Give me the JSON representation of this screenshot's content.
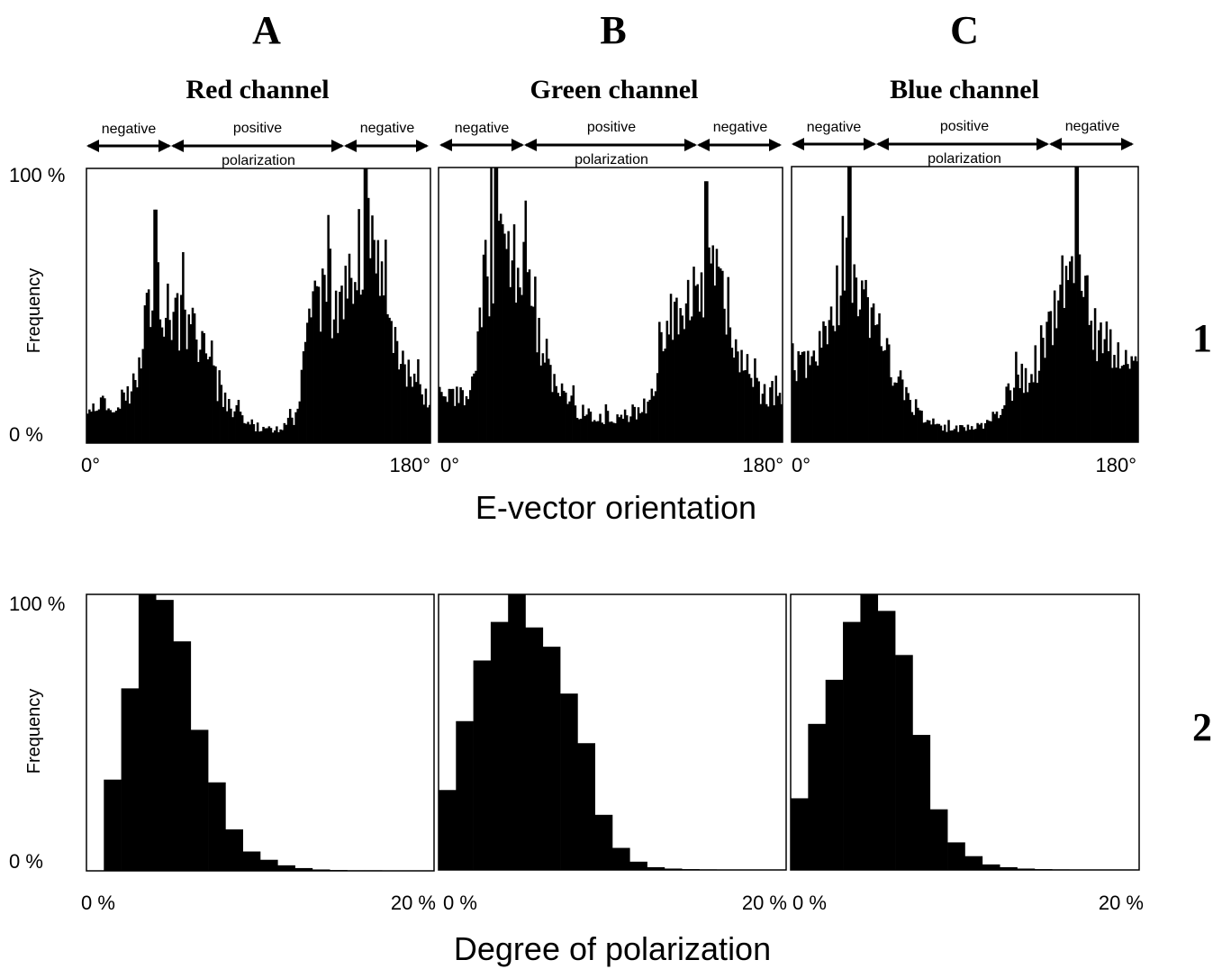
{
  "columns": [
    {
      "letter": "A",
      "channel": "Red channel"
    },
    {
      "letter": "B",
      "channel": "Green channel"
    },
    {
      "letter": "C",
      "channel": "Blue channel"
    }
  ],
  "rows": [
    "1",
    "2"
  ],
  "polarization_labels": {
    "negative": "negative",
    "positive": "positive",
    "polarization": "polarization"
  },
  "y_axis": {
    "label": "Frequency",
    "top": "100 %",
    "bottom": "0 %"
  },
  "row1_axis": {
    "min_label": "0°",
    "max_label": "180°",
    "title": "E-vector orientation"
  },
  "row2_axis": {
    "min_label": "0 %",
    "max_label": "20 %",
    "title": "Degree of polarization"
  },
  "chart_data": [
    {
      "type": "bar",
      "panel": "A1",
      "title": "Red channel",
      "xlabel": "E-vector orientation",
      "ylabel": "Frequency",
      "xlim": [
        0,
        180
      ],
      "ylim": [
        0,
        100
      ],
      "bin_width_deg": 1,
      "envelope": [
        [
          0,
          14
        ],
        [
          20,
          16
        ],
        [
          28,
          25
        ],
        [
          30,
          52
        ],
        [
          36,
          60
        ],
        [
          40,
          48
        ],
        [
          50,
          44
        ],
        [
          60,
          36
        ],
        [
          70,
          18
        ],
        [
          80,
          10
        ],
        [
          90,
          5
        ],
        [
          100,
          5
        ],
        [
          110,
          9
        ],
        [
          112,
          14
        ],
        [
          114,
          42
        ],
        [
          120,
          50
        ],
        [
          130,
          52
        ],
        [
          140,
          60
        ],
        [
          146,
          74
        ],
        [
          150,
          64
        ],
        [
          156,
          54
        ],
        [
          160,
          44
        ],
        [
          166,
          30
        ],
        [
          172,
          20
        ],
        [
          180,
          14
        ]
      ],
      "peaks": [
        [
          36,
          85
        ],
        [
          146,
          100
        ]
      ]
    },
    {
      "type": "bar",
      "panel": "B1",
      "title": "Green channel",
      "xlabel": "E-vector orientation",
      "ylabel": "Frequency",
      "xlim": [
        0,
        180
      ],
      "ylim": [
        0,
        100
      ],
      "bin_width_deg": 1,
      "envelope": [
        [
          0,
          16
        ],
        [
          10,
          16
        ],
        [
          18,
          20
        ],
        [
          22,
          50
        ],
        [
          28,
          64
        ],
        [
          34,
          68
        ],
        [
          40,
          62
        ],
        [
          48,
          58
        ],
        [
          54,
          36
        ],
        [
          60,
          22
        ],
        [
          70,
          13
        ],
        [
          80,
          9
        ],
        [
          90,
          9
        ],
        [
          100,
          10
        ],
        [
          110,
          14
        ],
        [
          114,
          20
        ],
        [
          118,
          46
        ],
        [
          126,
          50
        ],
        [
          134,
          56
        ],
        [
          140,
          62
        ],
        [
          146,
          60
        ],
        [
          152,
          46
        ],
        [
          158,
          30
        ],
        [
          166,
          20
        ],
        [
          180,
          14
        ]
      ],
      "peaks": [
        [
          30,
          100
        ],
        [
          140,
          95
        ]
      ]
    },
    {
      "type": "bar",
      "panel": "C1",
      "title": "Blue channel",
      "xlabel": "E-vector orientation",
      "ylabel": "Frequency",
      "xlim": [
        0,
        180
      ],
      "ylim": [
        0,
        100
      ],
      "bin_width_deg": 1,
      "envelope": [
        [
          0,
          30
        ],
        [
          10,
          32
        ],
        [
          20,
          42
        ],
        [
          26,
          52
        ],
        [
          30,
          62
        ],
        [
          34,
          54
        ],
        [
          40,
          46
        ],
        [
          46,
          38
        ],
        [
          52,
          26
        ],
        [
          60,
          16
        ],
        [
          70,
          8
        ],
        [
          80,
          5
        ],
        [
          90,
          5
        ],
        [
          100,
          6
        ],
        [
          108,
          12
        ],
        [
          114,
          20
        ],
        [
          122,
          24
        ],
        [
          130,
          32
        ],
        [
          136,
          42
        ],
        [
          140,
          54
        ],
        [
          146,
          62
        ],
        [
          150,
          58
        ],
        [
          156,
          40
        ],
        [
          164,
          34
        ],
        [
          172,
          30
        ],
        [
          180,
          30
        ]
      ],
      "peaks": [
        [
          30,
          100
        ],
        [
          148,
          100
        ]
      ]
    },
    {
      "type": "bar",
      "panel": "A2",
      "title": "Red channel",
      "xlabel": "Degree of polarization",
      "ylabel": "Frequency",
      "xlim": [
        0,
        20
      ],
      "ylim": [
        0,
        100
      ],
      "bin_edges": [
        1,
        2,
        3,
        4,
        5,
        6,
        7,
        8,
        9,
        10,
        11,
        12,
        13,
        14,
        15,
        16,
        17,
        18,
        19,
        20
      ],
      "values": [
        33,
        66,
        100,
        98,
        83,
        51,
        32,
        15,
        7,
        4,
        2,
        1,
        0.5,
        0.3,
        0.2,
        0.2,
        0.1,
        0.1,
        0.1
      ]
    },
    {
      "type": "bar",
      "panel": "B2",
      "title": "Green channel",
      "xlabel": "Degree of polarization",
      "ylabel": "Frequency",
      "xlim": [
        0,
        20
      ],
      "ylim": [
        0,
        100
      ],
      "bin_edges": [
        0,
        1,
        2,
        3,
        4,
        5,
        6,
        7,
        8,
        9,
        10,
        11,
        12,
        13,
        14,
        15,
        16,
        17,
        18,
        19,
        20
      ],
      "values": [
        29,
        54,
        76,
        90,
        100,
        88,
        81,
        64,
        46,
        20,
        8,
        3,
        1,
        0.5,
        0.3,
        0.2,
        0.1,
        0.1,
        0.1,
        0.1
      ]
    },
    {
      "type": "bar",
      "panel": "C2",
      "title": "Blue channel",
      "xlabel": "Degree of polarization",
      "ylabel": "Frequency",
      "xlim": [
        0,
        20
      ],
      "ylim": [
        0,
        100
      ],
      "bin_edges": [
        0,
        1,
        2,
        3,
        4,
        5,
        6,
        7,
        8,
        9,
        10,
        11,
        12,
        13,
        14,
        15,
        16,
        17,
        18,
        19,
        20
      ],
      "values": [
        26,
        53,
        69,
        90,
        100,
        94,
        78,
        49,
        22,
        10,
        5,
        2,
        1,
        0.5,
        0.3,
        0.2,
        0.1,
        0.1,
        0.1,
        0.1
      ]
    }
  ]
}
